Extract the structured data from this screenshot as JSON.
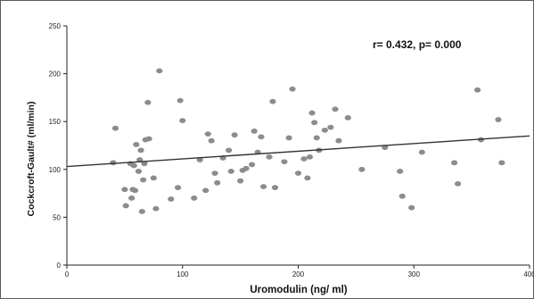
{
  "chart_data": {
    "type": "scatter",
    "title": "",
    "xlabel": "Uromodulin (ng/ ml)",
    "ylabel": "Cockcroft-Gault# (ml/min)",
    "xlim": [
      0,
      400
    ],
    "ylim": [
      0,
      250
    ],
    "xticks": [
      "0",
      "100",
      "200",
      "300",
      "400"
    ],
    "yticks": [
      "0",
      "50",
      "100",
      "150",
      "200",
      "250"
    ],
    "grid": false,
    "annotation": "r= 0.432, p= 0.000",
    "point_color": "#8c8c8c",
    "line_color": "#333333",
    "trendline": {
      "x": [
        0,
        400
      ],
      "y": [
        103,
        135
      ]
    },
    "points": [
      [
        40,
        107
      ],
      [
        42,
        143
      ],
      [
        50,
        79
      ],
      [
        51,
        62
      ],
      [
        55,
        106
      ],
      [
        56,
        70
      ],
      [
        57,
        79
      ],
      [
        58,
        104
      ],
      [
        59,
        78
      ],
      [
        60,
        126
      ],
      [
        62,
        98
      ],
      [
        63,
        110
      ],
      [
        64,
        120
      ],
      [
        65,
        56
      ],
      [
        66,
        89
      ],
      [
        67,
        106
      ],
      [
        68,
        131
      ],
      [
        70,
        170
      ],
      [
        71,
        132
      ],
      [
        75,
        91
      ],
      [
        77,
        59
      ],
      [
        80,
        203
      ],
      [
        90,
        69
      ],
      [
        96,
        81
      ],
      [
        98,
        172
      ],
      [
        100,
        151
      ],
      [
        110,
        70
      ],
      [
        115,
        110
      ],
      [
        120,
        78
      ],
      [
        122,
        137
      ],
      [
        125,
        130
      ],
      [
        128,
        96
      ],
      [
        130,
        86
      ],
      [
        135,
        112
      ],
      [
        140,
        120
      ],
      [
        142,
        98
      ],
      [
        145,
        136
      ],
      [
        150,
        88
      ],
      [
        152,
        99
      ],
      [
        155,
        101
      ],
      [
        160,
        105
      ],
      [
        162,
        140
      ],
      [
        165,
        118
      ],
      [
        168,
        134
      ],
      [
        170,
        82
      ],
      [
        175,
        113
      ],
      [
        178,
        171
      ],
      [
        180,
        81
      ],
      [
        188,
        108
      ],
      [
        192,
        133
      ],
      [
        195,
        184
      ],
      [
        200,
        96
      ],
      [
        205,
        111
      ],
      [
        208,
        91
      ],
      [
        210,
        113
      ],
      [
        212,
        159
      ],
      [
        214,
        149
      ],
      [
        216,
        133
      ],
      [
        218,
        120
      ],
      [
        223,
        141
      ],
      [
        228,
        144
      ],
      [
        232,
        163
      ],
      [
        235,
        130
      ],
      [
        243,
        154
      ],
      [
        255,
        100
      ],
      [
        275,
        123
      ],
      [
        288,
        98
      ],
      [
        290,
        72
      ],
      [
        298,
        60
      ],
      [
        307,
        118
      ],
      [
        335,
        107
      ],
      [
        338,
        85
      ],
      [
        355,
        183
      ],
      [
        358,
        131
      ],
      [
        373,
        152
      ],
      [
        376,
        107
      ]
    ]
  }
}
